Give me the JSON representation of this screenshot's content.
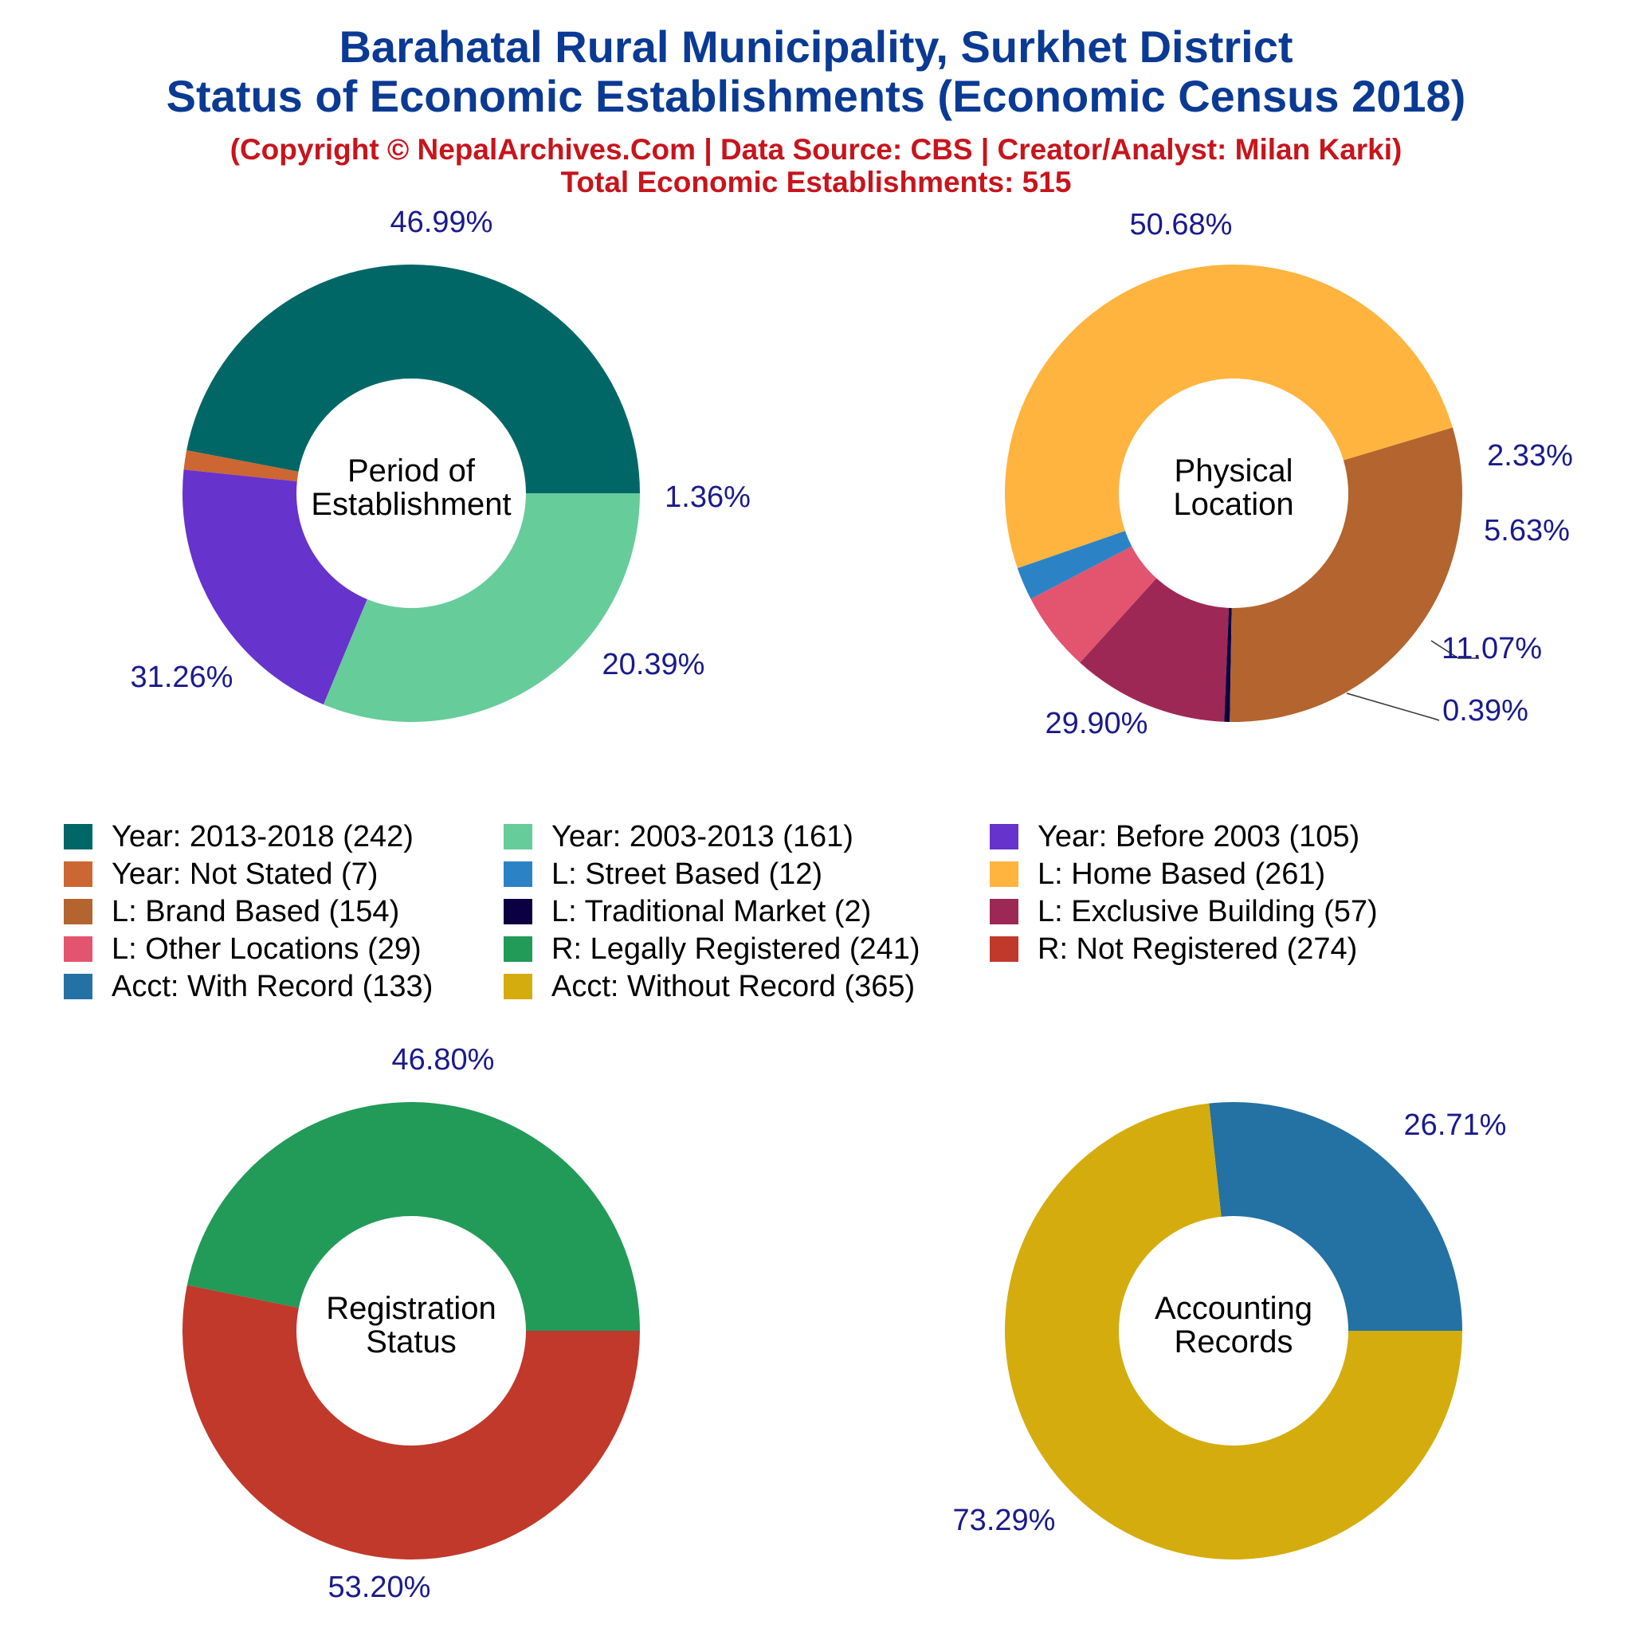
{
  "header": {
    "title_line1": "Barahatal Rural Municipality, Surkhet District",
    "title_line2": "Status of Economic Establishments (Economic Census 2018)",
    "copyright": "(Copyright © NepalArchives.Com | Data Source: CBS | Creator/Analyst: Milan Karki)",
    "total": "Total Economic Establishments: 515"
  },
  "colors": {
    "title": "#0a3a94",
    "subtitle": "#c8141c",
    "label": "#1a1a8c"
  },
  "chart_data": [
    {
      "type": "pie",
      "donut": true,
      "center_label": [
        "Period of",
        "Establishment"
      ],
      "slices": [
        {
          "label": "Year: 2013-2018",
          "value": 242,
          "percent": "46.99%",
          "color": "#006766"
        },
        {
          "label": "Year: Not Stated",
          "value": 7,
          "percent": "1.36%",
          "color": "#cc6633"
        },
        {
          "label": "Year: Before 2003",
          "value": 105,
          "percent": "20.39%",
          "color": "#6633cc"
        },
        {
          "label": "Year: 2003-2013",
          "value": 161,
          "percent": "31.26%",
          "color": "#66cc99"
        }
      ]
    },
    {
      "type": "pie",
      "donut": true,
      "center_label": [
        "Physical",
        "Location"
      ],
      "slices": [
        {
          "label": "L: Home Based",
          "value": 261,
          "percent": "50.68%",
          "color": "#ffb43f"
        },
        {
          "label": "L: Street Based",
          "value": 12,
          "percent": "2.33%",
          "color": "#2b83c6"
        },
        {
          "label": "L: Other Locations",
          "value": 29,
          "percent": "5.63%",
          "color": "#e3546f"
        },
        {
          "label": "L: Exclusive Building",
          "value": 57,
          "percent": "11.07%",
          "color": "#9e2855"
        },
        {
          "label": "L: Traditional Market",
          "value": 2,
          "percent": "0.39%",
          "color": "#0a0042"
        },
        {
          "label": "L: Brand Based",
          "value": 154,
          "percent": "29.90%",
          "color": "#b3642f"
        }
      ]
    },
    {
      "type": "pie",
      "donut": true,
      "center_label": [
        "Registration",
        "Status"
      ],
      "slices": [
        {
          "label": "R: Legally Registered",
          "value": 241,
          "percent": "46.80%",
          "color": "#229a58"
        },
        {
          "label": "R: Not Registered",
          "value": 274,
          "percent": "53.20%",
          "color": "#c0392b"
        }
      ]
    },
    {
      "type": "pie",
      "donut": true,
      "center_label": [
        "Accounting",
        "Records"
      ],
      "slices": [
        {
          "label": "Acct: With Record",
          "value": 133,
          "percent": "26.71%",
          "color": "#2471a3"
        },
        {
          "label": "Acct: Without Record",
          "value": 365,
          "percent": "73.29%",
          "color": "#d4ac0d"
        }
      ]
    }
  ],
  "legend": [
    {
      "text": "Year: 2013-2018 (242)",
      "color": "#006766"
    },
    {
      "text": "Year: 2003-2013 (161)",
      "color": "#66cc99"
    },
    {
      "text": "Year: Before 2003 (105)",
      "color": "#6633cc"
    },
    {
      "text": "Year: Not Stated (7)",
      "color": "#cc6633"
    },
    {
      "text": "L: Street Based (12)",
      "color": "#2b83c6"
    },
    {
      "text": "L: Home Based (261)",
      "color": "#ffb43f"
    },
    {
      "text": "L: Brand Based (154)",
      "color": "#b3642f"
    },
    {
      "text": "L: Traditional Market (2)",
      "color": "#0a0042"
    },
    {
      "text": "L: Exclusive Building (57)",
      "color": "#9e2855"
    },
    {
      "text": "L: Other Locations (29)",
      "color": "#e3546f"
    },
    {
      "text": "R: Legally Registered (241)",
      "color": "#229a58"
    },
    {
      "text": "R: Not Registered (274)",
      "color": "#c0392b"
    },
    {
      "text": "Acct: With Record (133)",
      "color": "#2471a3"
    },
    {
      "text": "Acct: Without Record (365)",
      "color": "#d4ac0d"
    }
  ]
}
